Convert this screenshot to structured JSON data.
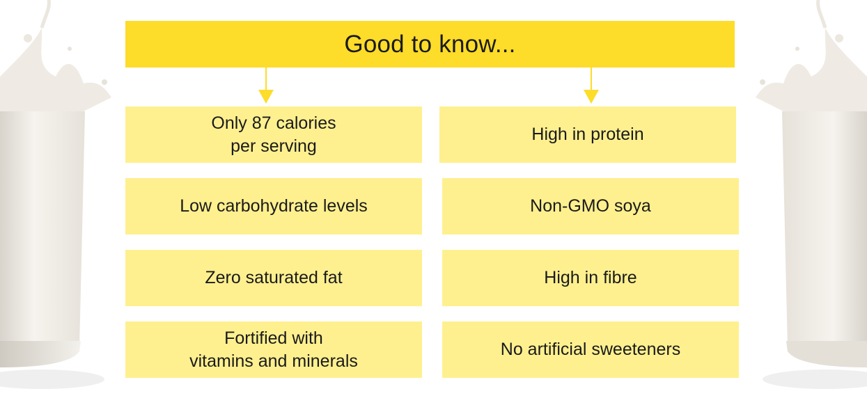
{
  "header": {
    "title": "Good to know..."
  },
  "colors": {
    "header_bg": "#fddc2a",
    "box_bg": "#fff08f"
  },
  "left_column": [
    {
      "lines": [
        "Only 87 calories",
        "per serving"
      ]
    },
    {
      "lines": [
        "Low carbohydrate levels"
      ]
    },
    {
      "lines": [
        "Zero saturated fat"
      ]
    },
    {
      "lines": [
        "Fortified with",
        "vitamins and minerals"
      ]
    }
  ],
  "right_column": [
    {
      "lines": [
        "High in protein"
      ]
    },
    {
      "lines": [
        "Non-GMO soya"
      ]
    },
    {
      "lines": [
        "High in fibre"
      ]
    },
    {
      "lines": [
        "No artificial sweeteners"
      ]
    }
  ]
}
